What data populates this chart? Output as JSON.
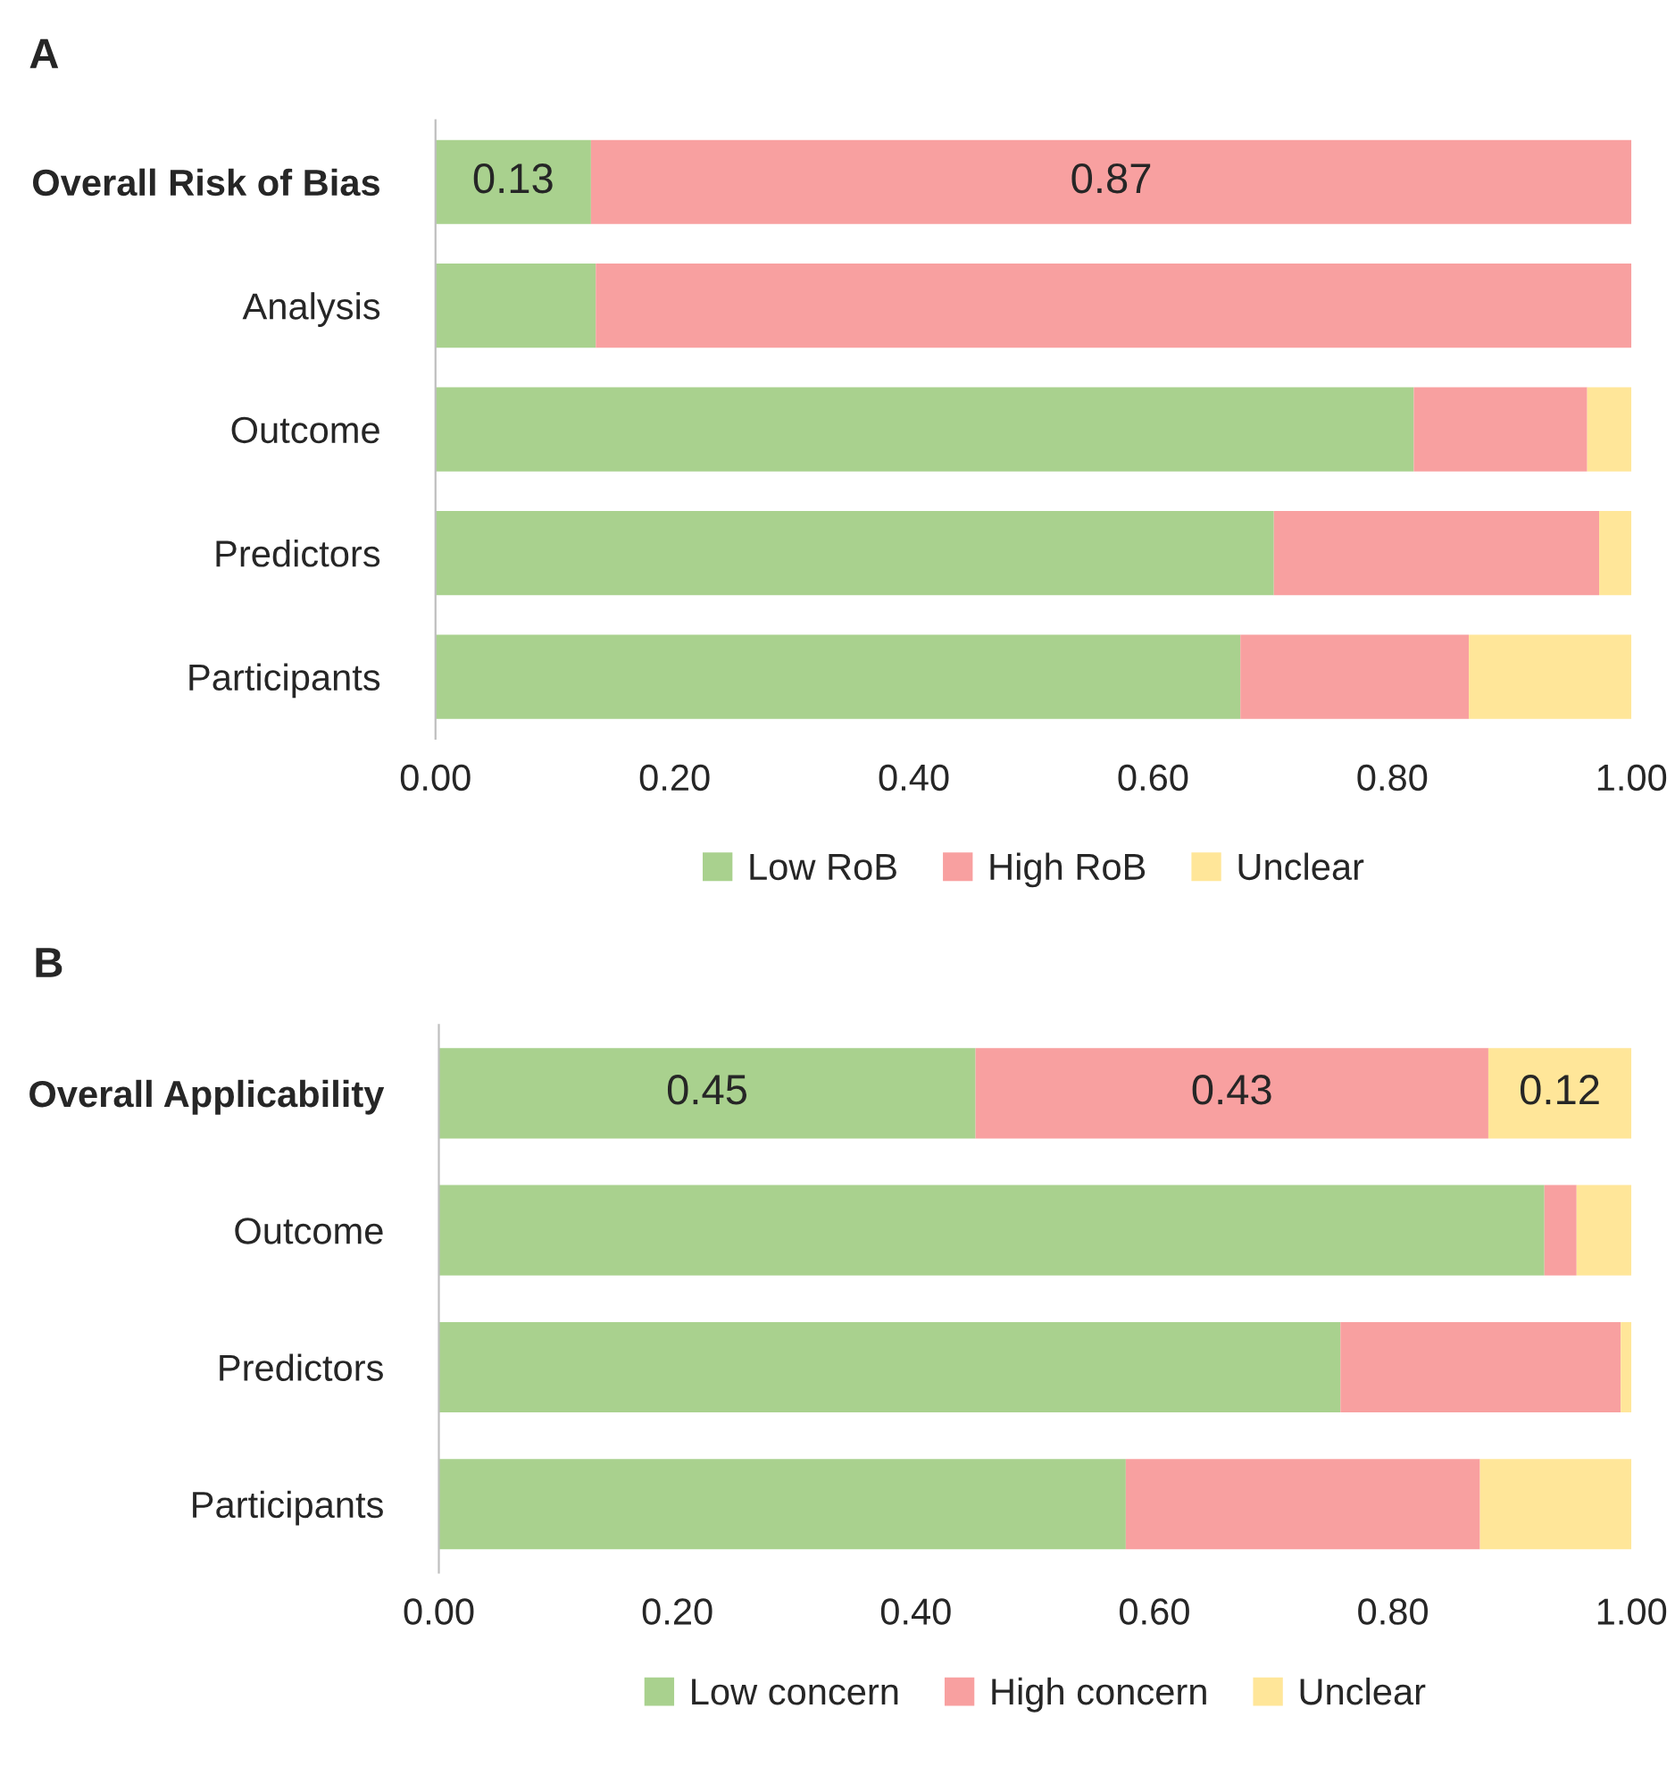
{
  "chart_data": [
    {
      "type": "bar",
      "orientation": "horizontal",
      "stacked": true,
      "title": "A",
      "categories": [
        "Overall Risk of Bias",
        "Analysis",
        "Outcome",
        "Predictors",
        "Participants"
      ],
      "series": [
        {
          "name": "Low RoB",
          "color": "#a9d18e",
          "values": [
            0.13,
            0.134,
            0.818,
            0.701,
            0.673
          ],
          "value_labels": [
            "0.13",
            null,
            null,
            null,
            null
          ]
        },
        {
          "name": "High RoB",
          "color": "#f8a0a0",
          "values": [
            0.87,
            0.866,
            0.145,
            0.272,
            0.191
          ],
          "value_labels": [
            "0.87",
            null,
            null,
            null,
            null
          ]
        },
        {
          "name": "Unclear",
          "color": "#ffe699",
          "values": [
            null,
            null,
            0.037,
            0.027,
            0.136
          ],
          "value_labels": [
            null,
            null,
            null,
            null,
            null
          ]
        }
      ],
      "xlim": [
        0,
        1
      ],
      "xticks": [
        {
          "value": 0,
          "label": "0.00"
        },
        {
          "value": 0.2,
          "label": "0.20"
        },
        {
          "value": 0.4,
          "label": "0.40"
        },
        {
          "value": 0.6,
          "label": "0.60"
        },
        {
          "value": 0.8,
          "label": "0.80"
        },
        {
          "value": 1,
          "label": "1.00"
        }
      ],
      "legend": "bottom",
      "grid": false
    },
    {
      "type": "bar",
      "orientation": "horizontal",
      "stacked": true,
      "title": "B",
      "categories": [
        "Overall Applicability",
        "Outcome",
        "Predictors",
        "Participants"
      ],
      "series": [
        {
          "name": "Low concern",
          "color": "#a9d18e",
          "values": [
            0.45,
            0.927,
            0.756,
            0.576
          ],
          "value_labels": [
            "0.45",
            null,
            null,
            null
          ]
        },
        {
          "name": "High concern",
          "color": "#f8a0a0",
          "values": [
            0.43,
            0.027,
            0.235,
            0.297
          ],
          "value_labels": [
            "0.43",
            null,
            null,
            null
          ]
        },
        {
          "name": "Unclear",
          "color": "#ffe699",
          "values": [
            0.12,
            0.046,
            0.009,
            0.127
          ],
          "value_labels": [
            "0.12",
            null,
            null,
            null
          ]
        }
      ],
      "xlim": [
        0,
        1
      ],
      "xticks": [
        {
          "value": 0,
          "label": "0.00"
        },
        {
          "value": 0.2,
          "label": "0.20"
        },
        {
          "value": 0.4,
          "label": "0.40"
        },
        {
          "value": 0.6,
          "label": "0.60"
        },
        {
          "value": 0.8,
          "label": "0.80"
        },
        {
          "value": 1,
          "label": "1.00"
        }
      ],
      "legend": "bottom",
      "grid": false
    }
  ]
}
